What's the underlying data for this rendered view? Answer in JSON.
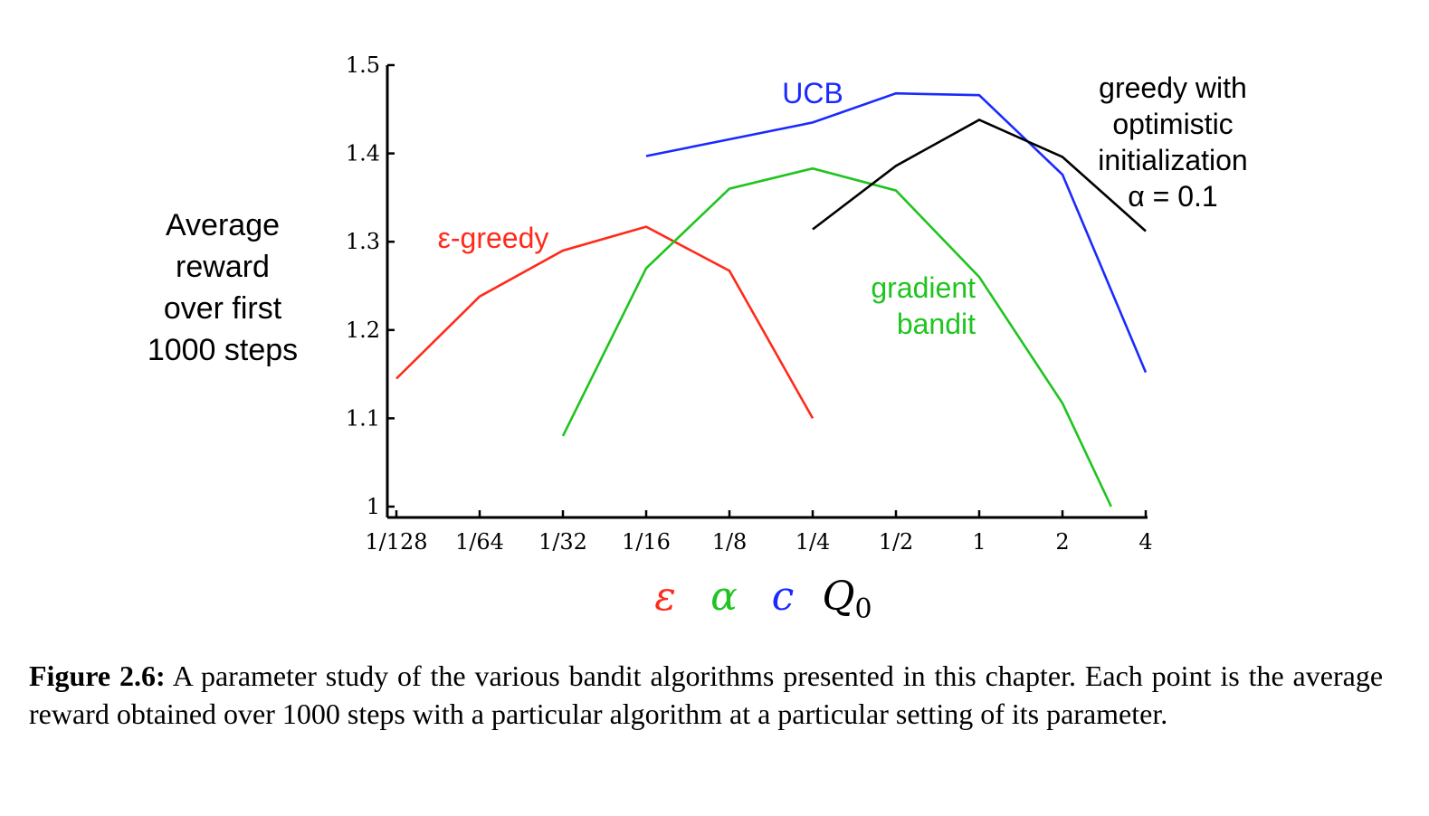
{
  "chart_data": {
    "type": "line",
    "ylabel_lines": [
      "Average",
      "reward",
      "over first",
      "1000 steps"
    ],
    "x_tick_labels": [
      "1/128",
      "1/64",
      "1/32",
      "1/16",
      "1/8",
      "1/4",
      "1/2",
      "1",
      "2",
      "4"
    ],
    "y_tick_labels": [
      "1",
      "1.1",
      "1.2",
      "1.3",
      "1.4",
      "1.5"
    ],
    "ylim": [
      1.0,
      1.5
    ],
    "x_scale": "log2",
    "parameter_symbols": [
      {
        "symbol": "ε",
        "color": "#ff2a1a"
      },
      {
        "symbol": "α",
        "color": "#1fc41f"
      },
      {
        "symbol": "c",
        "color": "#1a2aff"
      },
      {
        "symbol": "Q",
        "subscript": "0",
        "color": "#000000"
      }
    ],
    "series": [
      {
        "name": "ε-greedy",
        "color": "#ff2a1a",
        "points": [
          [
            "1/128",
            1.145
          ],
          [
            "1/64",
            1.238
          ],
          [
            "1/32",
            1.29
          ],
          [
            "1/16",
            1.317
          ],
          [
            "1/8",
            1.267
          ],
          [
            "1/4",
            1.1
          ]
        ]
      },
      {
        "name": "UCB",
        "color": "#1a2aff",
        "points": [
          [
            "1/16",
            1.397
          ],
          [
            "1/8",
            1.416
          ],
          [
            "1/4",
            1.435
          ],
          [
            "1/2",
            1.468
          ],
          [
            "1",
            1.466
          ],
          [
            "2",
            1.376
          ],
          [
            "4",
            1.152
          ]
        ]
      },
      {
        "name": "gradient bandit",
        "name_lines": [
          "gradient",
          "bandit"
        ],
        "color": "#1fc41f",
        "points": [
          [
            "1/32",
            1.08
          ],
          [
            "1/16",
            1.27
          ],
          [
            "1/8",
            1.36
          ],
          [
            "1/4",
            1.383
          ],
          [
            "1/2",
            1.358
          ],
          [
            "1",
            1.26
          ],
          [
            "2",
            1.117
          ],
          [
            "3",
            1.0
          ]
        ]
      },
      {
        "name": "greedy with optimistic initialization α = 0.1",
        "name_lines": [
          "greedy with",
          "optimistic",
          "initialization",
          "α = 0.1"
        ],
        "color": "#000000",
        "points": [
          [
            "1/4",
            1.314
          ],
          [
            "1/2",
            1.386
          ],
          [
            "1",
            1.438
          ],
          [
            "2",
            1.396
          ],
          [
            "4",
            1.312
          ]
        ]
      }
    ]
  },
  "caption": {
    "label": "Figure 2.6:",
    "text": "A parameter study of the various bandit algorithms presented in this chapter. Each point is the average reward obtained over 1000 steps with a particular algorithm at a particular setting of its parameter."
  }
}
